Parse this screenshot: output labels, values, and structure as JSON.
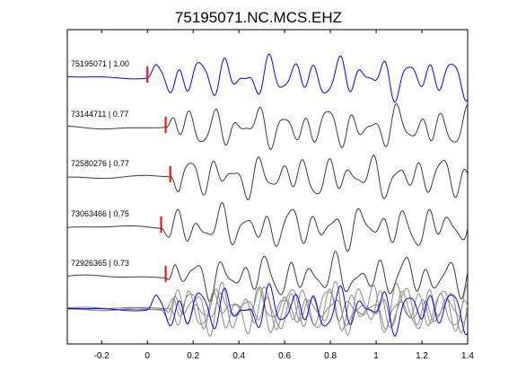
{
  "chart_data": {
    "type": "line",
    "title": "75195071.NC.MCS.EHZ",
    "xlabel": "",
    "ylabel": "",
    "xlim": [
      -0.35,
      1.4
    ],
    "grid": false,
    "legend": "none",
    "x_ticks": [
      -0.2,
      0,
      0.2,
      0.4,
      0.6,
      0.8,
      1,
      1.2,
      1.4
    ],
    "x_tick_labels": [
      "-0.2",
      "0",
      "0.2",
      "0.4",
      "0.6",
      "0.8",
      "1",
      "1.2",
      "1.4"
    ],
    "colors": {
      "reference": "#0000ff",
      "trace": "#3a3a3a",
      "overlay": "#8a8a8a",
      "pick": "#ff0000"
    },
    "traces": [
      {
        "label": "75195071 | 1.00",
        "pick_time": 0.0,
        "color": "#0000ff"
      },
      {
        "label": "73144711 | 0.77",
        "pick_time": 0.08,
        "color": "#3a3a3a"
      },
      {
        "label": "72580276 | 0.77",
        "pick_time": 0.1,
        "color": "#3a3a3a"
      },
      {
        "label": "73063466 | 0.75",
        "pick_time": 0.06,
        "color": "#3a3a3a"
      },
      {
        "label": "72926365 | 0.73",
        "pick_time": 0.08,
        "color": "#3a3a3a"
      }
    ]
  }
}
